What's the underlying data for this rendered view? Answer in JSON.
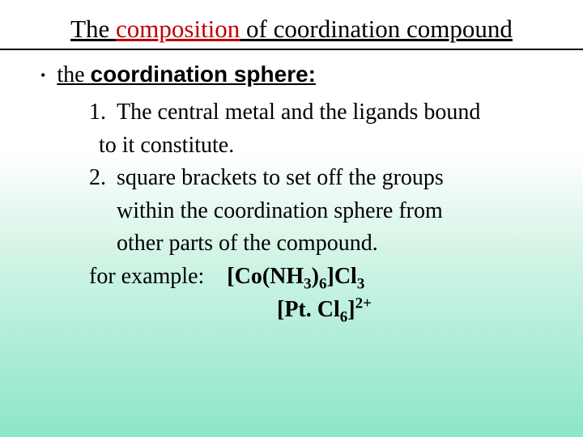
{
  "title": {
    "pre": "The ",
    "accent": "composition",
    "post": " of coordination compound"
  },
  "bullet": {
    "pre": "the ",
    "term": "coordination sphere:"
  },
  "items": [
    {
      "num": "1.",
      "lines": [
        "The central metal and the ligands bound",
        " to it constitute."
      ]
    },
    {
      "num": "2.",
      "lines": [
        "square brackets to set off the groups",
        "within the coordination sphere from",
        "other parts of the compound."
      ]
    }
  ],
  "example_label": "for example:",
  "formula1": {
    "p1": "[Co(NH",
    "s1": "3",
    "p2": ")",
    "s2": "6",
    "p3": "]Cl",
    "s3": "3"
  },
  "formula2": {
    "p1": "[Pt. Cl",
    "s1": "6",
    "p2": "]",
    "sup": "2+"
  }
}
